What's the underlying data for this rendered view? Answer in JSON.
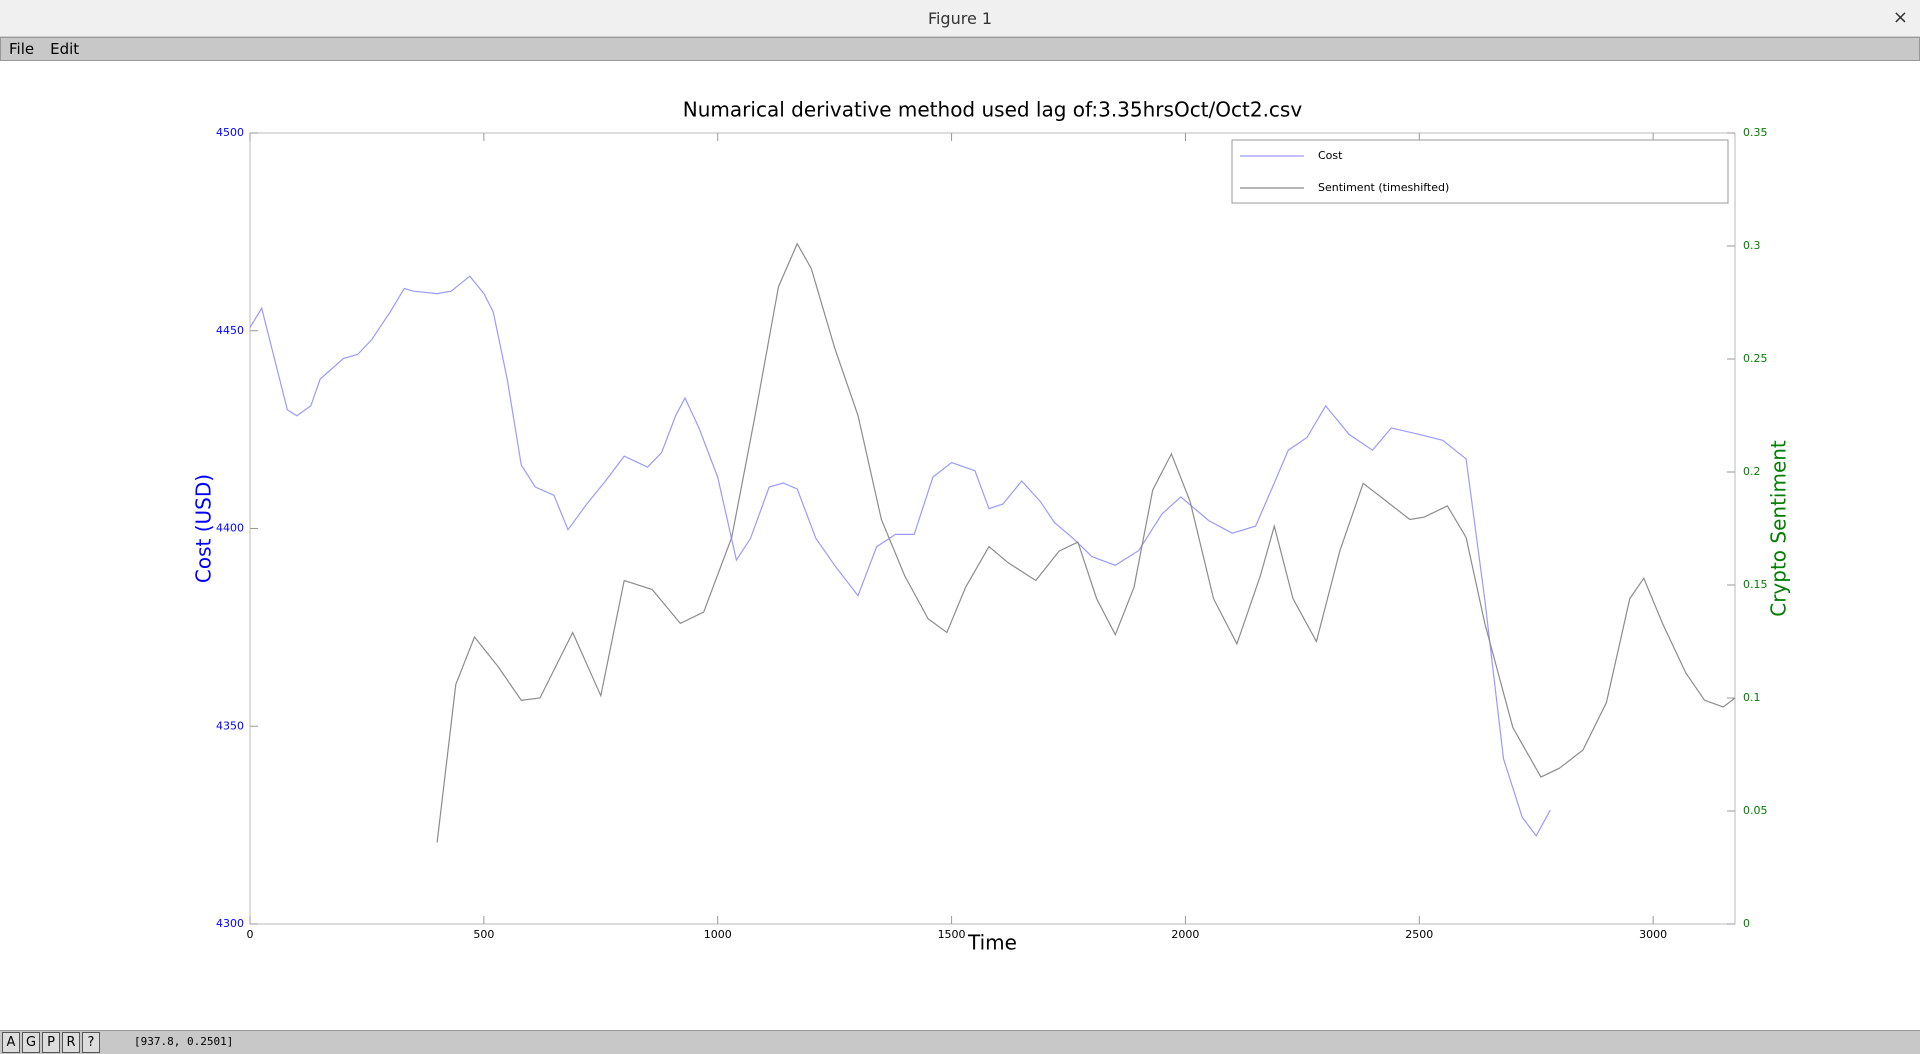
{
  "window": {
    "title": "Figure 1",
    "close": "×"
  },
  "menu": [
    "File",
    "Edit"
  ],
  "toolbar": [
    "A",
    "G",
    "P",
    "R",
    "?"
  ],
  "status": "[937.8, 0.2501]",
  "chart_data": {
    "type": "line",
    "title": "Numarical derivative method used lag of:3.35hrsOct/Oct2.csv",
    "xlabel": "Time",
    "ylabel": "Cost (USD)",
    "y2label": "Crypto Sentiment",
    "xlim": [
      0,
      3175
    ],
    "xticks": [
      0,
      500,
      1000,
      1500,
      2000,
      2500,
      3000
    ],
    "ylim": [
      4300,
      4500
    ],
    "yticks": [
      4300,
      4350,
      4400,
      4450,
      4500
    ],
    "y2lim": [
      0,
      0.35
    ],
    "y2ticks": [
      0,
      0.05,
      0.1,
      0.15,
      0.2,
      0.25,
      0.3,
      0.35
    ],
    "ylabel_color": "#0000ff",
    "y2label_color": "#007f00",
    "grid": false,
    "legend": "upper right",
    "series": [
      {
        "name": "Cost",
        "color": "#9a9aff",
        "axis": "y",
        "x": [
          0,
          25,
          50,
          80,
          100,
          130,
          150,
          200,
          230,
          260,
          300,
          330,
          350,
          400,
          430,
          470,
          500,
          520,
          550,
          580,
          610,
          650,
          680,
          720,
          760,
          800,
          850,
          880,
          910,
          930,
          960,
          1000,
          1040,
          1070,
          1110,
          1140,
          1170,
          1210,
          1250,
          1300,
          1340,
          1380,
          1420,
          1460,
          1500,
          1550,
          1580,
          1610,
          1650,
          1690,
          1720,
          1760,
          1800,
          1850,
          1900,
          1950,
          1990,
          2050,
          2100,
          2150,
          2190,
          2220,
          2260,
          2300,
          2350,
          2400,
          2440,
          2500,
          2550,
          2600,
          2640,
          2680,
          2720,
          2750,
          2780
        ],
        "values": [
          4450.8,
          4455.7,
          4444,
          4430,
          4428.5,
          4431,
          4437.8,
          4443,
          4444,
          4447.7,
          4454.8,
          4460.7,
          4460,
          4459.4,
          4460,
          4463.8,
          4459.4,
          4454.8,
          4437.8,
          4416,
          4410.5,
          4408.4,
          4399.7,
          4406.2,
          4412,
          4418.3,
          4415.5,
          4419.2,
          4428.5,
          4433,
          4425.4,
          4413,
          4392,
          4397.5,
          4410.5,
          4411.5,
          4410,
          4397.5,
          4390.7,
          4383,
          4395.4,
          4398.5,
          4398.5,
          4413,
          4416.7,
          4414.6,
          4405,
          4406.2,
          4412,
          4406.8,
          4401.5,
          4397.5,
          4392.9,
          4390.7,
          4394.4,
          4403.7,
          4408,
          4402,
          4398.8,
          4400.6,
          4411.5,
          4419.8,
          4423,
          4431,
          4423.8,
          4419.8,
          4425.4,
          4423.8,
          4422.3,
          4417.6,
          4382,
          4341.8,
          4327,
          4322.3,
          4328.8
        ]
      },
      {
        "name": "Sentiment (timeshifted)",
        "color": "#8c8c8c",
        "axis": "y2",
        "x": [
          400,
          440,
          480,
          530,
          580,
          620,
          690,
          750,
          800,
          860,
          920,
          970,
          1030,
          1080,
          1130,
          1170,
          1200,
          1250,
          1300,
          1350,
          1400,
          1450,
          1490,
          1530,
          1580,
          1620,
          1680,
          1730,
          1770,
          1810,
          1850,
          1890,
          1930,
          1970,
          2010,
          2060,
          2110,
          2160,
          2190,
          2230,
          2280,
          2330,
          2380,
          2430,
          2480,
          2510,
          2560,
          2600,
          2640,
          2700,
          2760,
          2800,
          2850,
          2900,
          2950,
          2980,
          3020,
          3070,
          3110,
          3150,
          3175
        ],
        "values": [
          0.036,
          0.106,
          0.127,
          0.114,
          0.099,
          0.1,
          0.129,
          0.101,
          0.152,
          0.148,
          0.133,
          0.138,
          0.171,
          0.225,
          0.282,
          0.301,
          0.29,
          0.255,
          0.225,
          0.179,
          0.154,
          0.135,
          0.129,
          0.149,
          0.167,
          0.16,
          0.152,
          0.165,
          0.169,
          0.144,
          0.128,
          0.149,
          0.192,
          0.208,
          0.187,
          0.144,
          0.124,
          0.154,
          0.176,
          0.144,
          0.125,
          0.165,
          0.195,
          0.187,
          0.179,
          0.18,
          0.185,
          0.171,
          0.133,
          0.087,
          0.065,
          0.069,
          0.077,
          0.098,
          0.144,
          0.153,
          0.133,
          0.111,
          0.099,
          0.096,
          0.1
        ]
      }
    ]
  }
}
